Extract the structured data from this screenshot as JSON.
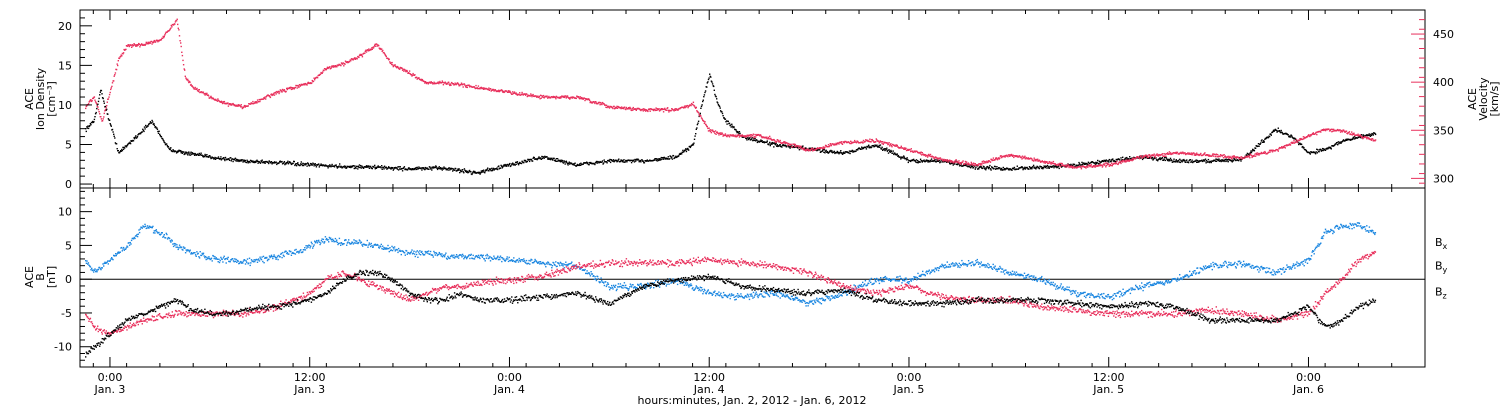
{
  "colors": {
    "density": "#000000",
    "velocity": "#e8305c",
    "bx": "#000000",
    "by": "#1a86e0",
    "bz": "#e8305c"
  },
  "chart_data": [
    {
      "type": "scatter",
      "panel": "plasma",
      "ylabel_lines": [
        "ACE",
        "Ion Density",
        "[cm⁻³]"
      ],
      "y2label_lines": [
        "ACE",
        "Velocity",
        "[km/s]"
      ],
      "ylim": [
        -0.5,
        22
      ],
      "yticks": [
        0,
        5,
        10,
        15,
        20
      ],
      "ytick_labels": [
        "0",
        "5",
        "10",
        "15",
        "20"
      ],
      "y2lim": [
        290,
        475
      ],
      "y2ticks": [
        300,
        350,
        400,
        450
      ],
      "y2tick_labels": [
        "300",
        "350",
        "400",
        "450"
      ],
      "x_unit": "hours after 0:00 Jan. 3, 2012",
      "series": [
        {
          "key": "density",
          "axis": "left",
          "x": [
            -1.5,
            -1,
            -0.6,
            -0.2,
            0.5,
            1.5,
            2.5,
            3.5,
            4.5,
            6,
            8,
            10,
            12,
            14,
            16,
            18,
            20,
            22,
            24,
            26,
            28,
            30,
            32,
            34,
            35,
            35.5,
            36,
            36.5,
            37,
            38,
            40,
            42,
            44,
            46,
            48,
            50,
            52,
            54,
            56,
            58,
            60,
            62,
            64,
            66,
            68,
            70,
            71,
            72,
            73,
            74,
            75,
            76
          ],
          "y": [
            7,
            8,
            12,
            9,
            4,
            6,
            8,
            4.5,
            4,
            3.5,
            3,
            2.8,
            2.5,
            2.3,
            2.2,
            2,
            2.1,
            1.5,
            2.5,
            3.5,
            2.5,
            3,
            3,
            3.5,
            5,
            10,
            14,
            10,
            8,
            6,
            5,
            4.5,
            4,
            5,
            3,
            3,
            2.2,
            2,
            2.2,
            2.5,
            3,
            3.5,
            3,
            3,
            3.2,
            7,
            6,
            4,
            4.5,
            5.5,
            6,
            6.5
          ]
        },
        {
          "key": "velocity",
          "axis": "right",
          "x": [
            -1.5,
            -1,
            -0.5,
            0.5,
            1,
            2,
            3,
            4,
            4.5,
            5,
            6,
            7,
            8,
            9,
            10,
            11,
            12,
            13,
            14,
            15,
            16,
            17,
            18,
            19,
            20,
            21,
            22,
            24,
            26,
            28,
            30,
            32,
            34,
            35,
            36,
            37,
            38,
            39,
            40,
            42,
            44,
            46,
            48,
            50,
            52,
            54,
            56,
            58,
            60,
            62,
            64,
            66,
            68,
            70,
            72,
            73,
            74,
            75,
            76
          ],
          "y": [
            375,
            385,
            360,
            425,
            438,
            440,
            445,
            465,
            405,
            395,
            385,
            378,
            375,
            382,
            390,
            395,
            400,
            415,
            420,
            428,
            440,
            418,
            410,
            400,
            400,
            398,
            395,
            390,
            385,
            385,
            375,
            372,
            372,
            378,
            350,
            345,
            345,
            345,
            340,
            330,
            338,
            340,
            330,
            320,
            315,
            325,
            318,
            312,
            315,
            323,
            327,
            325,
            322,
            330,
            345,
            352,
            350,
            345,
            340
          ]
        }
      ]
    },
    {
      "type": "scatter",
      "panel": "magnetic",
      "ylabel_lines": [
        "ACE",
        "B",
        "[nT]"
      ],
      "ylim": [
        -13,
        13.5
      ],
      "yticks": [
        -10,
        -5,
        0,
        5,
        10
      ],
      "ytick_labels": [
        "-10",
        "-5",
        "0",
        "5",
        "10"
      ],
      "legend": [
        "Bx",
        "By",
        "Bz"
      ],
      "legend_position": "right",
      "x_unit": "hours after 0:00 Jan. 3, 2012",
      "series": [
        {
          "key": "bx",
          "name": "Bx",
          "x": [
            -1.5,
            -1,
            0,
            1,
            2,
            3,
            4,
            5,
            6,
            7,
            8,
            9,
            10,
            11,
            12,
            13,
            14,
            15,
            16,
            17,
            18,
            19,
            20,
            21,
            22,
            24,
            26,
            28,
            30,
            32,
            34,
            36,
            38,
            40,
            42,
            44,
            46,
            48,
            50,
            52,
            54,
            56,
            58,
            60,
            62,
            64,
            66,
            68,
            70,
            72,
            73,
            74,
            75,
            76
          ],
          "y": [
            -11,
            -10,
            -8,
            -6,
            -5,
            -4,
            -3,
            -4.5,
            -5,
            -5,
            -4.5,
            -4,
            -4,
            -3.5,
            -3,
            -2,
            0,
            1,
            1,
            0,
            -2,
            -3,
            -3,
            -2,
            -3,
            -3,
            -2.5,
            -2,
            -3.5,
            -1,
            0,
            0.5,
            -1,
            -1.5,
            -2,
            -1.5,
            -3,
            -3.5,
            -3.5,
            -3,
            -3,
            -3,
            -3.5,
            -4,
            -3.5,
            -4,
            -6,
            -6,
            -6,
            -4,
            -7,
            -6,
            -4,
            -3
          ]
        },
        {
          "key": "by",
          "name": "By",
          "x": [
            -1.5,
            -1,
            0,
            1,
            2,
            3,
            4,
            5,
            6,
            7,
            8,
            9,
            10,
            11,
            12,
            13,
            14,
            15,
            16,
            17,
            18,
            19,
            20,
            21,
            22,
            24,
            26,
            28,
            30,
            32,
            34,
            36,
            38,
            40,
            42,
            44,
            46,
            48,
            50,
            52,
            54,
            56,
            58,
            60,
            62,
            64,
            66,
            68,
            70,
            72,
            73,
            74,
            75,
            76
          ],
          "y": [
            3,
            1,
            3,
            5,
            8,
            7,
            5,
            4,
            3,
            3,
            2.5,
            3,
            3.5,
            4,
            5,
            6,
            5.5,
            5.5,
            5,
            4.5,
            4,
            4,
            3.5,
            3.5,
            3.5,
            3,
            2.5,
            2,
            -1,
            -1,
            0,
            -2,
            -2.5,
            -2,
            -3.5,
            -2,
            0,
            0,
            2,
            2.5,
            1,
            0,
            -2,
            -2.5,
            -1,
            0,
            2,
            2.5,
            1,
            3,
            7,
            8,
            8,
            7
          ]
        },
        {
          "key": "bz",
          "name": "Bz",
          "x": [
            -1.5,
            -1,
            0,
            1,
            2,
            3,
            4,
            5,
            6,
            7,
            8,
            9,
            10,
            11,
            12,
            13,
            14,
            15,
            16,
            17,
            18,
            19,
            20,
            21,
            22,
            24,
            26,
            28,
            30,
            32,
            34,
            36,
            38,
            40,
            42,
            44,
            46,
            48,
            50,
            52,
            54,
            56,
            58,
            60,
            62,
            64,
            66,
            68,
            70,
            72,
            73,
            74,
            75,
            76
          ],
          "y": [
            -5,
            -7,
            -8,
            -7,
            -6,
            -5.5,
            -5,
            -5,
            -5,
            -5,
            -5,
            -4.5,
            -4,
            -3,
            -2,
            0,
            1,
            0,
            -1,
            -2,
            -3,
            -2,
            -1,
            -1,
            -0.5,
            0,
            0.5,
            2,
            2.5,
            2.5,
            2.5,
            3,
            2.5,
            2,
            1,
            -1,
            -2,
            -1,
            -2.5,
            -3,
            -3,
            -4,
            -4.5,
            -5,
            -5,
            -5,
            -4.5,
            -5,
            -6,
            -5,
            -2,
            0,
            3,
            4
          ]
        }
      ]
    }
  ],
  "xaxis": {
    "xlim": [
      -1.8,
      79
    ],
    "ticks": [
      0,
      12,
      24,
      36,
      48,
      60,
      72
    ],
    "tick_time_labels": [
      "0:00",
      "12:00",
      "0:00",
      "12:00",
      "0:00",
      "12:00",
      "0:00"
    ],
    "tick_date_labels": [
      "Jan. 3",
      "Jan. 3",
      "Jan. 4",
      "Jan. 4",
      "Jan. 5",
      "Jan. 5",
      "Jan. 6"
    ],
    "xlabel": "hours:minutes, Jan. 2, 2012 - Jan. 6, 2012"
  }
}
